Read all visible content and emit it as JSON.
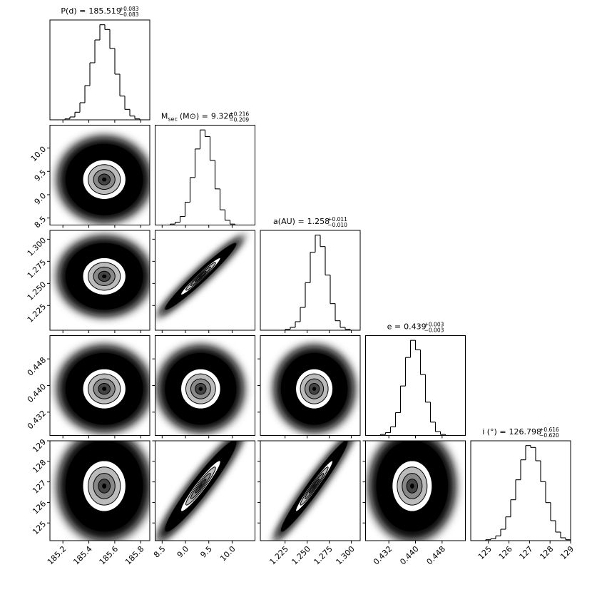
{
  "chart_data": {
    "type": "corner",
    "params": [
      {
        "label": "P(d) =",
        "value": 185.519,
        "upper": {
          "value": 0.083,
          "label": "+0.083"
        },
        "lower": {
          "value": -0.083,
          "label": "−0.083"
        },
        "xlim": [
          185.1,
          185.87
        ],
        "xticks": [
          185.2,
          185.4,
          185.6,
          185.8
        ],
        "bins": [
          185.1,
          185.1385,
          185.177,
          185.2155,
          185.254,
          185.2925,
          185.331,
          185.3695,
          185.408,
          185.4465,
          185.485,
          185.5235,
          185.562,
          185.6005,
          185.639,
          185.6775,
          185.716,
          185.7545,
          185.793,
          185.8315,
          185.87
        ],
        "counts": [
          0,
          0,
          0,
          1,
          3,
          8,
          18,
          36,
          60,
          84,
          100,
          95,
          75,
          48,
          25,
          11,
          4,
          1,
          0,
          0
        ]
      },
      {
        "label": "M",
        "label_sub": "sec",
        "label_unit": "(M⊙) =",
        "value": 9.326,
        "upper": {
          "value": 0.216,
          "label": "+0.216"
        },
        "lower": {
          "value": -0.209,
          "label": "−0.209"
        },
        "xlim": [
          8.35,
          10.49
        ],
        "xticks": [
          8.5,
          {
            "value": 9.0,
            "label": "9.0"
          },
          9.5,
          {
            "value": 10.0,
            "label": "10.0"
          }
        ],
        "bins": [
          8.35,
          8.457,
          8.564,
          8.671,
          8.778,
          8.885,
          8.992,
          9.099,
          9.206,
          9.313,
          9.42,
          9.527,
          9.634,
          9.741,
          9.848,
          9.955,
          10.062,
          10.169,
          10.276,
          10.383,
          10.49
        ],
        "counts": [
          0,
          0,
          0,
          1,
          3,
          9,
          24,
          50,
          80,
          100,
          93,
          68,
          38,
          16,
          5,
          1,
          0,
          0,
          0,
          0
        ]
      },
      {
        "label": "a(AU) =",
        "value": 1.258,
        "upper": {
          "value": 0.011,
          "label": "+0.011"
        },
        "lower": {
          "value": -0.01,
          "label": "−0.010"
        },
        "xlim": [
          1.197,
          1.31
        ],
        "xticks": [
          1.225,
          {
            "value": 1.25,
            "label": "1.250"
          },
          1.275,
          {
            "value": 1.3,
            "label": "1.300"
          }
        ],
        "bins": [
          1.197,
          1.20265,
          1.2083,
          1.21395,
          1.2196,
          1.22525,
          1.2309,
          1.23655,
          1.2422,
          1.24785,
          1.2535,
          1.25915,
          1.2648,
          1.27045,
          1.2761,
          1.28175,
          1.2874,
          1.29305,
          1.2987,
          1.30435,
          1.31
        ],
        "counts": [
          0,
          0,
          0,
          0,
          0,
          1,
          3,
          9,
          24,
          50,
          82,
          100,
          88,
          58,
          28,
          10,
          3,
          1,
          0,
          0
        ]
      },
      {
        "label": "e =",
        "value": 0.439,
        "upper": {
          "value": 0.003,
          "label": "+0.003"
        },
        "lower": {
          "value": -0.003,
          "label": "−0.003"
        },
        "xlim": [
          0.425,
          0.455
        ],
        "xticks": [
          0.432,
          {
            "value": 0.44,
            "label": "0.440"
          },
          0.448
        ],
        "bins": [
          0.425,
          0.4265,
          0.428,
          0.4295,
          0.431,
          0.4325,
          0.434,
          0.4355,
          0.437,
          0.4385,
          0.44,
          0.4415,
          0.443,
          0.4445,
          0.446,
          0.4475,
          0.449,
          0.4505,
          0.452,
          0.4535,
          0.455
        ],
        "counts": [
          0,
          0,
          0,
          1,
          3,
          9,
          24,
          52,
          82,
          100,
          90,
          64,
          35,
          14,
          4,
          1,
          0,
          0,
          0,
          0
        ]
      },
      {
        "label": "i (°) =",
        "value": 126.798,
        "upper": {
          "value": 0.616,
          "label": "+0.616"
        },
        "lower": {
          "value": -0.62,
          "label": "−0.620"
        },
        "xlim": [
          124.14,
          129.0
        ],
        "xticks": [
          125,
          126,
          127,
          128,
          129
        ],
        "bins": [
          124.14,
          124.383,
          124.626,
          124.869,
          125.112,
          125.355,
          125.598,
          125.841,
          126.084,
          126.327,
          126.57,
          126.813,
          127.056,
          127.299,
          127.542,
          127.785,
          128.028,
          128.271,
          128.514,
          128.757,
          129.0
        ],
        "counts": [
          0,
          0,
          0,
          1,
          2,
          5,
          12,
          25,
          43,
          64,
          85,
          100,
          98,
          84,
          62,
          40,
          21,
          9,
          3,
          1
        ]
      }
    ]
  }
}
